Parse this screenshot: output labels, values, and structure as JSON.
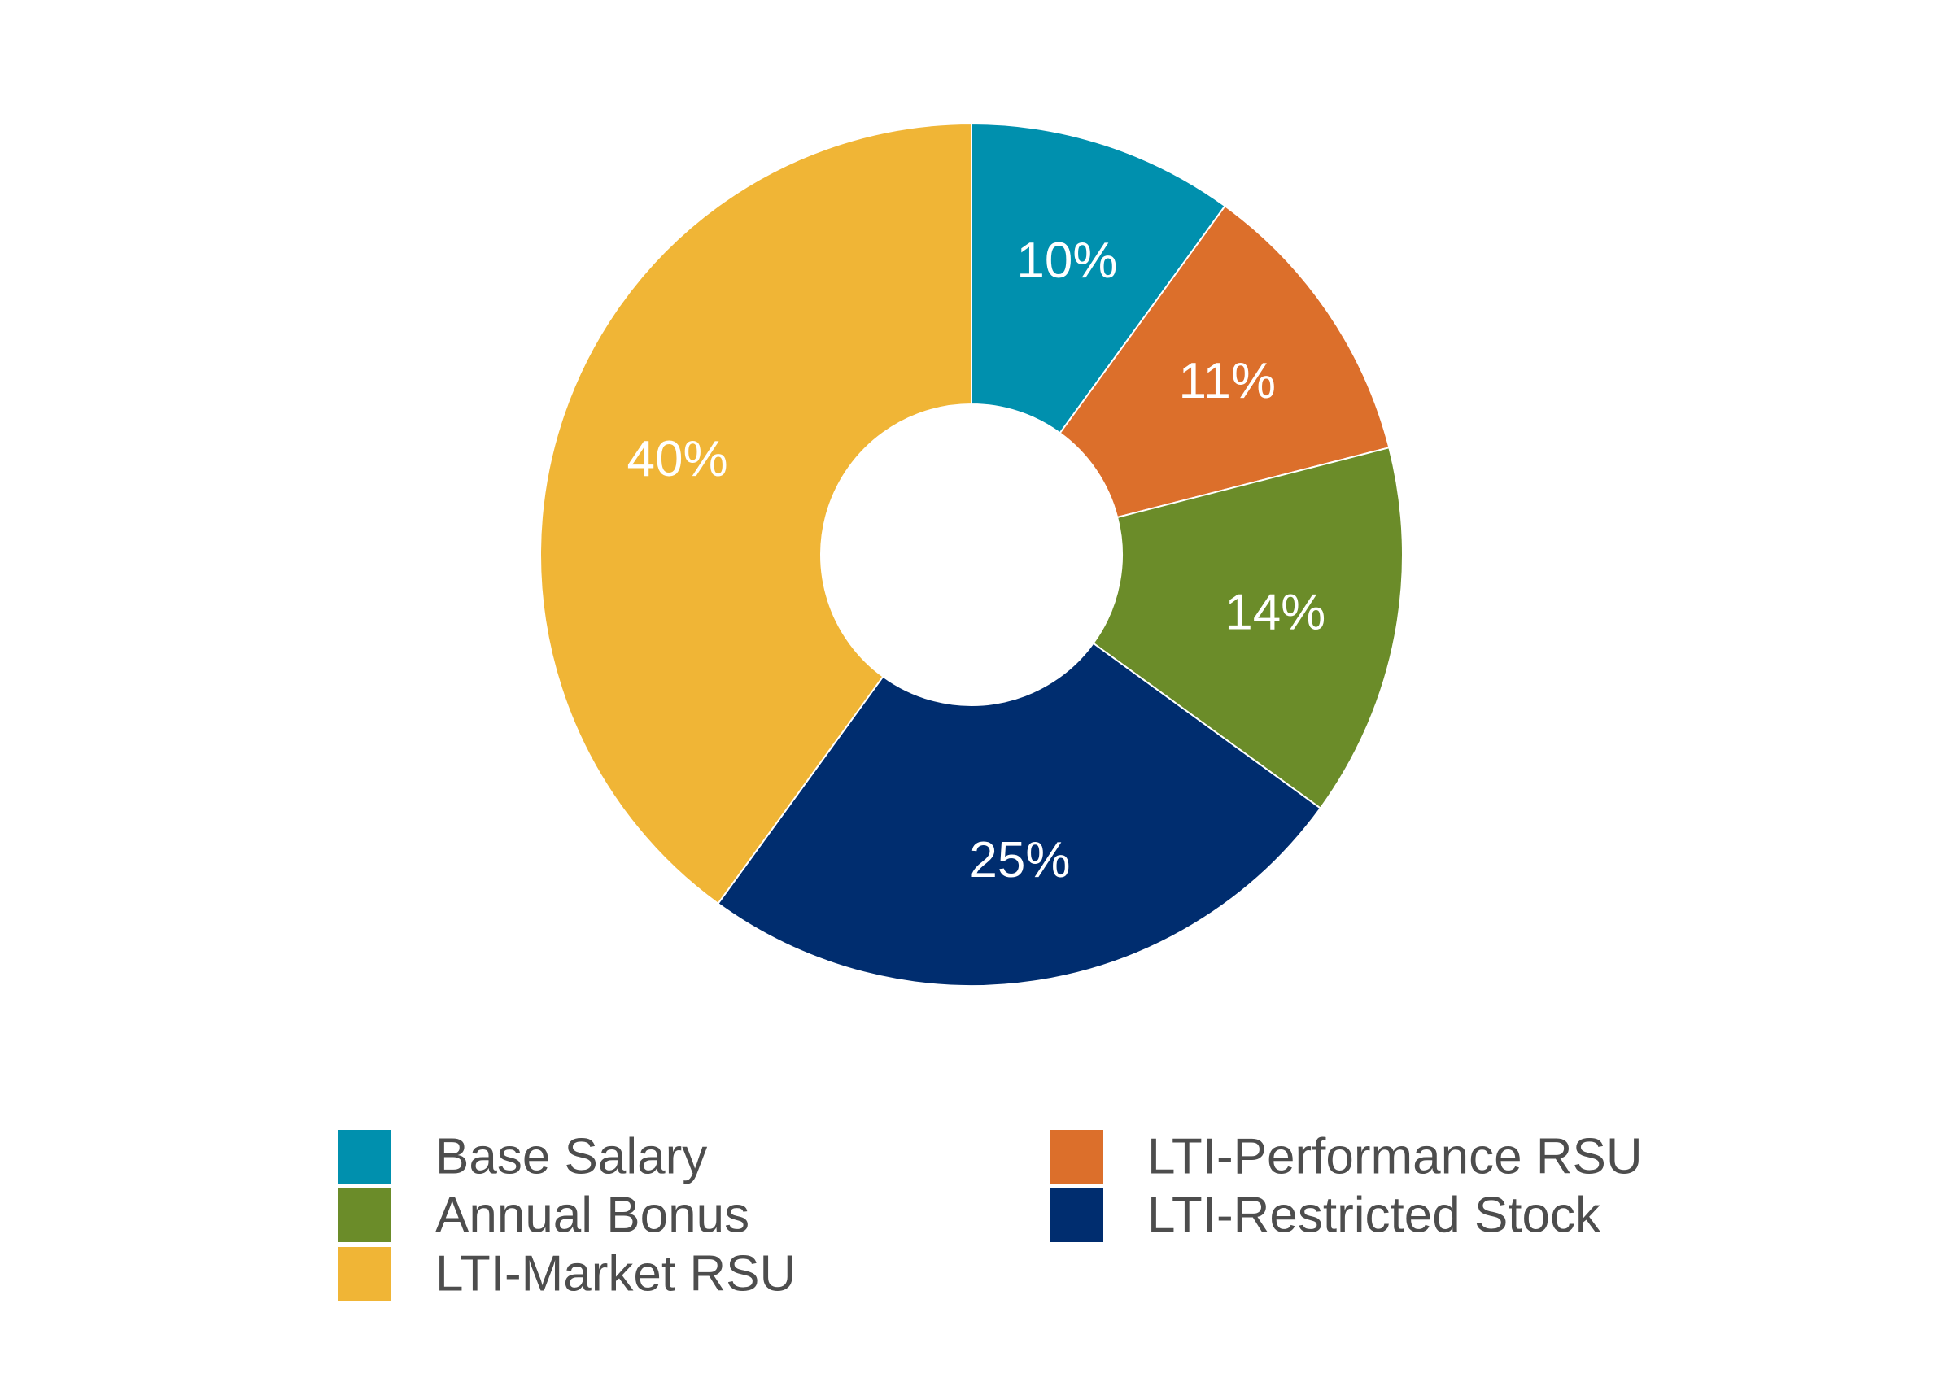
{
  "chart_data": {
    "type": "pie",
    "variant": "donut",
    "title": "",
    "categories": [
      "Base Salary",
      "LTI-Performance RSU",
      "Annual Bonus",
      "LTI-Restricted Stock",
      "LTI-Market RSU"
    ],
    "values": [
      10,
      11,
      14,
      25,
      40
    ],
    "labels": [
      "10%",
      "11%",
      "14%",
      "25%",
      "40%"
    ],
    "colors": [
      "#0090AE",
      "#DC6F2B",
      "#6B8C29",
      "#002D6F",
      "#F0B536"
    ],
    "legend": {
      "placement": "bottom",
      "columns": [
        [
          {
            "label": "Base Salary",
            "color": "#0090AE"
          },
          {
            "label": "Annual Bonus",
            "color": "#6B8C29"
          },
          {
            "label": "LTI-Market RSU",
            "color": "#F0B536"
          }
        ],
        [
          {
            "label": "LTI-Performance RSU",
            "color": "#DC6F2B"
          },
          {
            "label": "LTI-Restricted Stock",
            "color": "#002D6F"
          }
        ]
      ]
    }
  }
}
